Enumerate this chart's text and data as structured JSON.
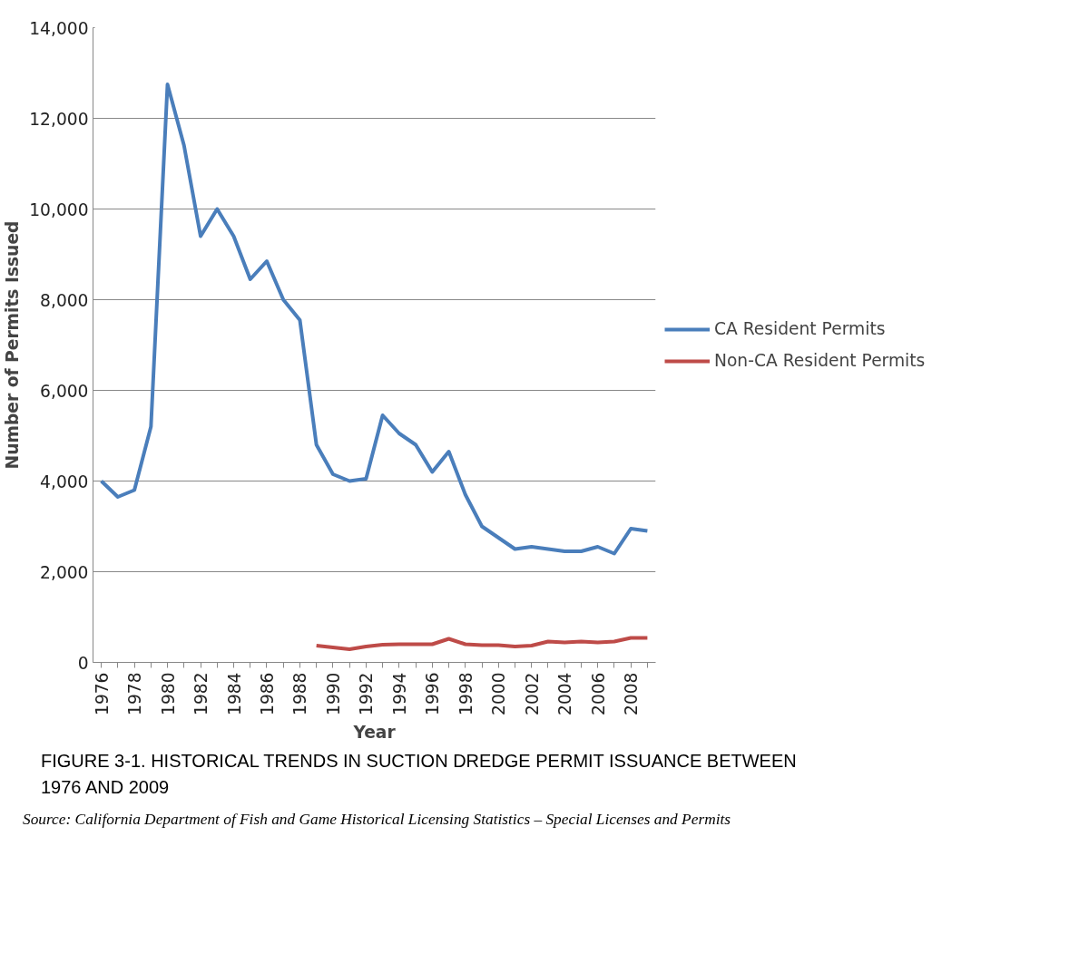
{
  "chart_data": {
    "type": "line",
    "title": "FIGURE 3-1.  HISTORICAL TRENDS IN SUCTION DREDGE PERMIT ISSUANCE BETWEEN 1976 AND 2009",
    "xlabel": "Year",
    "ylabel": "Number of Permits Issued",
    "annotations": [
      "Source: California Department of Fish and Game Historical Licensing Statistics – Special Licenses and Permits"
    ],
    "categories": [
      "1976",
      null,
      "1978",
      null,
      "1980",
      null,
      "1982",
      null,
      "1984",
      null,
      "1986",
      null,
      "1988",
      null,
      "1990",
      null,
      "1992",
      null,
      "1994",
      null,
      "1996",
      null,
      "1998",
      null,
      "2000",
      null,
      "2002",
      null,
      "2004",
      null,
      "2006",
      null,
      "2008",
      null
    ],
    "series": [
      {
        "name": "CA Resident Permits",
        "color": "#4a7ebb",
        "values": [
          4000,
          3650,
          3800,
          5200,
          12750,
          11400,
          9400,
          10000,
          9400,
          8450,
          8850,
          8000,
          7550,
          4800,
          4150,
          4000,
          4050,
          5450,
          5050,
          4800,
          4200,
          4650,
          3700,
          3000,
          2750,
          2500,
          2550,
          2500,
          2450,
          2450,
          2550,
          2400,
          2950,
          2900
        ]
      },
      {
        "name": "Non-CA Resident Permits",
        "color": "#be4b48",
        "values": [
          null,
          null,
          null,
          null,
          null,
          null,
          null,
          null,
          null,
          null,
          null,
          null,
          null,
          370,
          330,
          290,
          350,
          390,
          400,
          400,
          400,
          520,
          400,
          380,
          380,
          350,
          370,
          460,
          440,
          460,
          440,
          460,
          540,
          540
        ]
      }
    ],
    "ylim": [
      0,
      14000
    ],
    "yticks": [
      {
        "value": 0,
        "label": "0"
      },
      {
        "value": 2000,
        "label": "2,000"
      },
      {
        "value": 4000,
        "label": "4,000"
      },
      {
        "value": 6000,
        "label": "6,000"
      },
      {
        "value": 8000,
        "label": "8,000"
      },
      {
        "value": 10000,
        "label": "10,000"
      },
      {
        "value": 12000,
        "label": "12,000"
      },
      {
        "value": 14000,
        "label": "14,000"
      }
    ],
    "grid": "y",
    "legend": "right",
    "marker": "none",
    "line_style": "solid"
  }
}
